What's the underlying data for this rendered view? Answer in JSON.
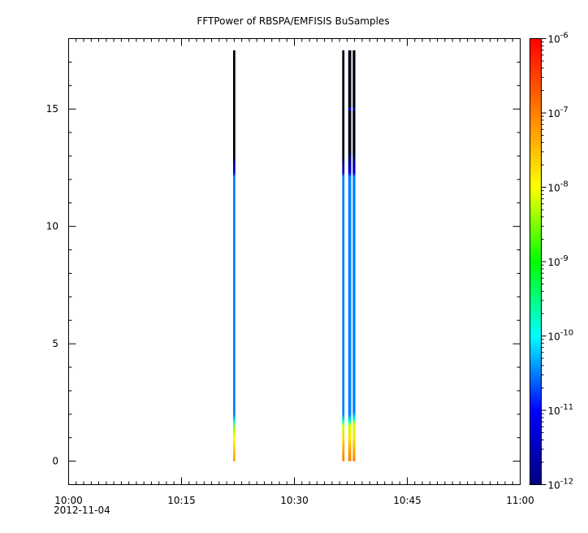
{
  "chart_data": {
    "type": "heatmap",
    "title": "FFTPower of RBSPA/EMFISIS  BuSamples",
    "xlabel": "",
    "ylabel": "",
    "x_range": [
      "10:00",
      "11:00"
    ],
    "x_ticks": [
      {
        "label": "10:00",
        "minutes": 0
      },
      {
        "label": "10:15",
        "minutes": 15
      },
      {
        "label": "10:30",
        "minutes": 30
      },
      {
        "label": "10:45",
        "minutes": 45
      },
      {
        "label": "11:00",
        "minutes": 60
      }
    ],
    "x_date_label": "2012-11-04",
    "ylim": [
      -1,
      18
    ],
    "y_ticks": [
      0,
      5,
      10,
      15
    ],
    "colorbar": {
      "scale": "log",
      "range": [
        1e-12,
        1e-06
      ],
      "ticks": [
        {
          "base": "10",
          "exp": "-12",
          "value": 1e-12
        },
        {
          "base": "10",
          "exp": "-11",
          "value": 1e-11
        },
        {
          "base": "10",
          "exp": "-10",
          "value": 1e-10
        },
        {
          "base": "10",
          "exp": "-9",
          "value": 1e-09
        },
        {
          "base": "10",
          "exp": "-8",
          "value": 1e-08
        },
        {
          "base": "10",
          "exp": "-7",
          "value": 1e-07
        },
        {
          "base": "10",
          "exp": "-6",
          "value": 1e-06
        }
      ],
      "colors": [
        "#00007f",
        "#0000ff",
        "#00ffff",
        "#00ff00",
        "#ffff00",
        "#ff7f00",
        "#ff0000"
      ]
    },
    "strips": [
      {
        "start_minute": 21.85,
        "end_minute": 22.15,
        "y_max": 17.5,
        "profile": [
          {
            "y": 0,
            "log10_power": -7.2
          },
          {
            "y": 0.5,
            "log10_power": -7.6
          },
          {
            "y": 1.0,
            "log10_power": -8.0
          },
          {
            "y": 1.4,
            "log10_power": -8.4
          },
          {
            "y": 1.7,
            "log10_power": -9.8
          },
          {
            "y": 2.0,
            "log10_power": -10.5
          },
          {
            "y": 12.1,
            "log10_power": -10.5
          },
          {
            "y": 12.3,
            "log10_power": -11.3
          },
          {
            "y": 12.6,
            "log10_power": -11.7
          },
          {
            "y": 13.0,
            "log10_power": -12
          },
          {
            "y": 17.5,
            "log10_power": -12
          }
        ]
      },
      {
        "start_minute": 36.35,
        "end_minute": 36.65,
        "y_max": 17.5,
        "profile": [
          {
            "y": 0,
            "log10_power": -7.0
          },
          {
            "y": 0.5,
            "log10_power": -7.3
          },
          {
            "y": 1.0,
            "log10_power": -7.7
          },
          {
            "y": 1.5,
            "log10_power": -8.2
          },
          {
            "y": 1.7,
            "log10_power": -9.8
          },
          {
            "y": 2.0,
            "log10_power": -10.5
          },
          {
            "y": 12.1,
            "log10_power": -10.5
          },
          {
            "y": 12.3,
            "log10_power": -11.4
          },
          {
            "y": 12.6,
            "log10_power": -11.8
          },
          {
            "y": 13.0,
            "log10_power": -12
          },
          {
            "y": 17.5,
            "log10_power": -12
          }
        ]
      },
      {
        "start_minute": 37.15,
        "end_minute": 37.55,
        "y_max": 17.5,
        "profile": [
          {
            "y": 0,
            "log10_power": -7.0
          },
          {
            "y": 0.5,
            "log10_power": -7.3
          },
          {
            "y": 1.0,
            "log10_power": -7.8
          },
          {
            "y": 1.5,
            "log10_power": -8.2
          },
          {
            "y": 1.7,
            "log10_power": -9.8
          },
          {
            "y": 2.0,
            "log10_power": -10.5
          },
          {
            "y": 12.1,
            "log10_power": -10.5
          },
          {
            "y": 12.3,
            "log10_power": -11.3
          },
          {
            "y": 12.7,
            "log10_power": -11.7
          },
          {
            "y": 13.2,
            "log10_power": -12
          },
          {
            "y": 14.9,
            "log10_power": -12
          },
          {
            "y": 15.0,
            "log10_power": -11.2
          },
          {
            "y": 15.1,
            "log10_power": -12
          },
          {
            "y": 17.5,
            "log10_power": -12
          }
        ]
      },
      {
        "start_minute": 37.75,
        "end_minute": 38.1,
        "y_max": 17.5,
        "profile": [
          {
            "y": 0,
            "log10_power": -7.0
          },
          {
            "y": 0.5,
            "log10_power": -7.4
          },
          {
            "y": 1.0,
            "log10_power": -7.8
          },
          {
            "y": 1.6,
            "log10_power": -8.2
          },
          {
            "y": 1.8,
            "log10_power": -9.8
          },
          {
            "y": 2.1,
            "log10_power": -10.5
          },
          {
            "y": 12.1,
            "log10_power": -10.5
          },
          {
            "y": 12.3,
            "log10_power": -11.3
          },
          {
            "y": 12.7,
            "log10_power": -11.7
          },
          {
            "y": 13.2,
            "log10_power": -12
          },
          {
            "y": 14.9,
            "log10_power": -12
          },
          {
            "y": 15.0,
            "log10_power": -11.2
          },
          {
            "y": 15.1,
            "log10_power": -12
          },
          {
            "y": 17.5,
            "log10_power": -12
          }
        ]
      }
    ]
  }
}
